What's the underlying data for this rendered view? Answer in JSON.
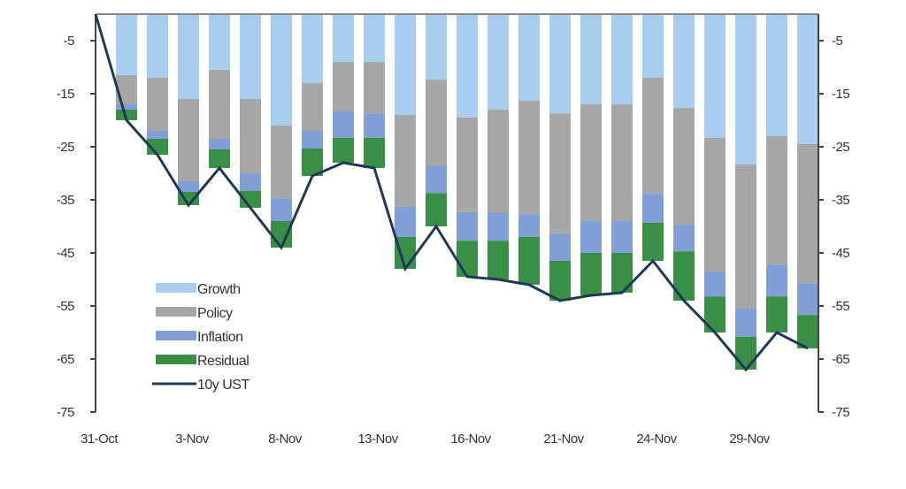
{
  "chart_data": {
    "type": "bar",
    "stacked": true,
    "title": "",
    "xlabel": "",
    "ylabel": "",
    "ylim": [
      -75,
      0
    ],
    "yticks": [
      -5,
      -15,
      -25,
      -35,
      -45,
      -55,
      -65,
      -75
    ],
    "yticks_right": [
      -5,
      -15,
      -25,
      -35,
      -45,
      -55,
      -65,
      -75
    ],
    "x_tick_labels": [
      {
        "index": 0,
        "label": "31-Oct"
      },
      {
        "index": 3,
        "label": "3-Nov"
      },
      {
        "index": 6,
        "label": "8-Nov"
      },
      {
        "index": 9,
        "label": "13-Nov"
      },
      {
        "index": 12,
        "label": "16-Nov"
      },
      {
        "index": 15,
        "label": "21-Nov"
      },
      {
        "index": 18,
        "label": "24-Nov"
      },
      {
        "index": 21,
        "label": "29-Nov"
      }
    ],
    "legend_position": "bottom-left",
    "series": [
      {
        "name": "Growth",
        "kind": "bar",
        "color": "#a9cdef",
        "values": [
          -11.5,
          -12,
          -16,
          -10.5,
          -16,
          -21,
          -13,
          -9,
          -9,
          -19,
          -12.3,
          -19.5,
          -18,
          -16.3,
          -18.7,
          -17,
          -17,
          -12,
          -17.7,
          -23.3,
          -28.3,
          -23,
          -24.5
        ]
      },
      {
        "name": "Policy",
        "kind": "bar",
        "color": "#a6a6a6",
        "values": [
          -5.5,
          -10,
          -15.5,
          -13,
          -14,
          -13.7,
          -9,
          -9.3,
          -9.7,
          -17.3,
          -16.2,
          -17.8,
          -19.5,
          -21.4,
          -22.6,
          -22,
          -22,
          -21.8,
          -22,
          -25.2,
          -27.2,
          -24.2,
          -26.2
        ]
      },
      {
        "name": "Inflation",
        "kind": "bar",
        "color": "#7f9fd6",
        "values": [
          -1,
          -1.5,
          -2,
          -2,
          -3.3,
          -4.3,
          -3.3,
          -5,
          -4.6,
          -5.7,
          -5.2,
          -5.4,
          -5.2,
          -4.3,
          -5.2,
          -6,
          -6,
          -5.5,
          -5,
          -4.7,
          -5.3,
          -6,
          -6
        ]
      },
      {
        "name": "Residual",
        "kind": "bar",
        "color": "#3a8f47",
        "values": [
          -2,
          -3,
          -2.5,
          -3.5,
          -3.2,
          -5,
          -5.2,
          -4.7,
          -5.7,
          -6,
          -6.3,
          -6.8,
          -7.3,
          -9,
          -7.5,
          -8,
          -7.5,
          -7.2,
          -9.3,
          -6.8,
          -6.2,
          -6.8,
          -6.3
        ]
      },
      {
        "name": "10y UST",
        "kind": "line",
        "color": "#1f3a56",
        "values": [
          0,
          -20,
          -26.5,
          -36,
          -29,
          -36.5,
          -44,
          -30.5,
          -28,
          -29,
          -48,
          -40,
          -49.5,
          -50,
          -51,
          -54,
          -53,
          -52.5,
          -46.5,
          -54,
          -60,
          -67,
          -60,
          -63
        ]
      }
    ]
  }
}
